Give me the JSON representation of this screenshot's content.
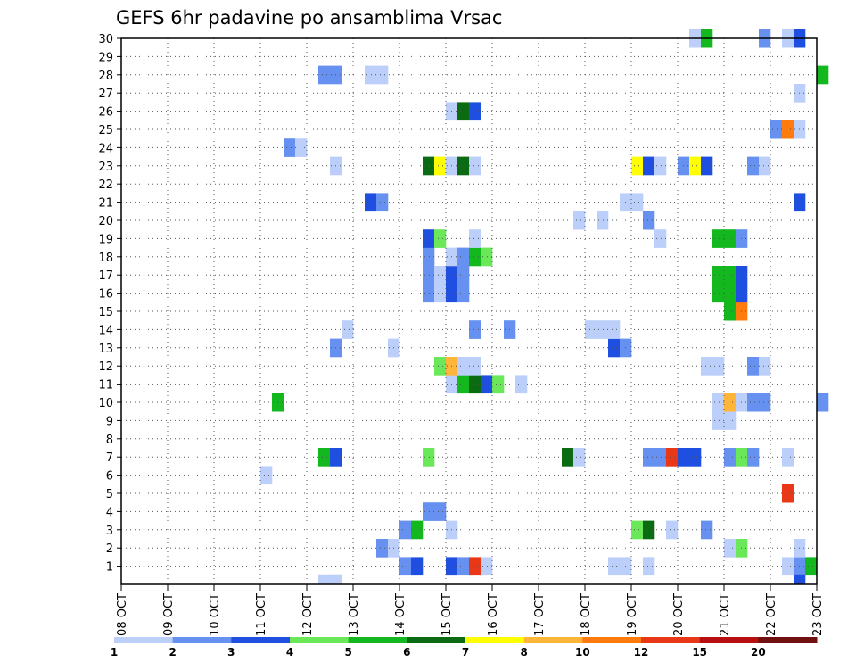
{
  "chart_data": {
    "type": "heatmap",
    "title": "GEFS 6hr padavine po ansamblima Vrsac",
    "xlabel": "",
    "ylabel": "",
    "x_ticks": [
      "08 OCT",
      "09 OCT",
      "10 OCT",
      "11 OCT",
      "12 OCT",
      "13 OCT",
      "14 OCT",
      "15 OCT",
      "16 OCT",
      "17 OCT",
      "18 OCT",
      "19 OCT",
      "20 OCT",
      "21 OCT",
      "22 OCT",
      "23 OCT"
    ],
    "y_ticks": [
      "1",
      "2",
      "3",
      "4",
      "5",
      "6",
      "7",
      "8",
      "9",
      "10",
      "11",
      "12",
      "13",
      "14",
      "15",
      "16",
      "17",
      "18",
      "19",
      "20",
      "21",
      "22",
      "23",
      "24",
      "25",
      "26",
      "27",
      "28",
      "29",
      "30"
    ],
    "xlim_days": [
      0,
      15
    ],
    "ylim": [
      0,
      30
    ],
    "grid": true,
    "legend": {
      "placement": "bottom",
      "labels": [
        "1",
        "2",
        "3",
        "4",
        "5",
        "6",
        "7",
        "8",
        "10",
        "12",
        "15",
        "20"
      ],
      "colors": [
        "#bccffa",
        "#6791f0",
        "#1f4fe0",
        "#6be85a",
        "#13b81f",
        "#0b6b13",
        "#ffff00",
        "#ffb43a",
        "#ff7b0d",
        "#e83818",
        "#b81010",
        "#701010"
      ]
    },
    "cell_hours": 6,
    "cells_note": "each cell = [member, start_hour_offset_from_08_OCT_00Z, class_index]",
    "cells": [
      [
        1,
        144,
        1
      ],
      [
        1,
        150,
        2
      ],
      [
        1,
        168,
        2
      ],
      [
        1,
        174,
        1
      ],
      [
        1,
        180,
        9
      ],
      [
        1,
        186,
        0
      ],
      [
        1,
        252,
        0
      ],
      [
        1,
        258,
        0
      ],
      [
        1,
        270,
        0
      ],
      [
        1,
        342,
        0
      ],
      [
        1,
        348,
        1
      ],
      [
        1,
        354,
        4
      ],
      [
        2,
        132,
        1
      ],
      [
        2,
        138,
        0
      ],
      [
        2,
        312,
        0
      ],
      [
        2,
        318,
        3
      ],
      [
        2,
        348,
        0
      ],
      [
        3,
        144,
        1
      ],
      [
        3,
        150,
        4
      ],
      [
        3,
        168,
        0
      ],
      [
        3,
        264,
        3
      ],
      [
        3,
        270,
        5
      ],
      [
        3,
        282,
        0
      ],
      [
        3,
        300,
        1
      ],
      [
        4,
        156,
        1
      ],
      [
        4,
        162,
        1
      ],
      [
        5,
        342,
        9
      ],
      [
        6,
        72,
        0
      ],
      [
        7,
        102,
        4
      ],
      [
        7,
        108,
        2
      ],
      [
        7,
        156,
        3
      ],
      [
        7,
        228,
        5
      ],
      [
        7,
        234,
        0
      ],
      [
        7,
        270,
        1
      ],
      [
        7,
        276,
        1
      ],
      [
        7,
        282,
        9
      ],
      [
        7,
        288,
        2
      ],
      [
        7,
        294,
        2
      ],
      [
        7,
        312,
        1
      ],
      [
        7,
        318,
        3
      ],
      [
        7,
        324,
        1
      ],
      [
        7,
        342,
        0
      ],
      [
        9,
        306,
        0
      ],
      [
        9,
        312,
        0
      ],
      [
        10,
        78,
        4
      ],
      [
        10,
        306,
        0
      ],
      [
        10,
        312,
        7
      ],
      [
        10,
        318,
        0
      ],
      [
        10,
        324,
        1
      ],
      [
        10,
        330,
        1
      ],
      [
        10,
        360,
        1
      ],
      [
        11,
        168,
        0
      ],
      [
        11,
        174,
        4
      ],
      [
        11,
        180,
        5
      ],
      [
        11,
        186,
        2
      ],
      [
        11,
        192,
        3
      ],
      [
        11,
        204,
        0
      ],
      [
        12,
        162,
        3
      ],
      [
        12,
        168,
        7
      ],
      [
        12,
        174,
        0
      ],
      [
        12,
        180,
        0
      ],
      [
        12,
        300,
        0
      ],
      [
        12,
        306,
        0
      ],
      [
        12,
        324,
        1
      ],
      [
        12,
        330,
        0
      ],
      [
        13,
        108,
        1
      ],
      [
        13,
        138,
        0
      ],
      [
        13,
        252,
        2
      ],
      [
        13,
        258,
        1
      ],
      [
        14,
        114,
        0
      ],
      [
        14,
        180,
        1
      ],
      [
        14,
        198,
        1
      ],
      [
        14,
        240,
        0
      ],
      [
        14,
        246,
        0
      ],
      [
        14,
        252,
        0
      ],
      [
        15,
        312,
        4
      ],
      [
        15,
        318,
        8
      ],
      [
        16,
        156,
        1
      ],
      [
        16,
        162,
        0
      ],
      [
        16,
        168,
        2
      ],
      [
        16,
        174,
        1
      ],
      [
        16,
        306,
        4
      ],
      [
        16,
        312,
        4
      ],
      [
        16,
        318,
        2
      ],
      [
        17,
        156,
        1
      ],
      [
        17,
        162,
        0
      ],
      [
        17,
        168,
        2
      ],
      [
        17,
        174,
        1
      ],
      [
        17,
        306,
        4
      ],
      [
        17,
        312,
        4
      ],
      [
        17,
        318,
        2
      ],
      [
        18,
        156,
        1
      ],
      [
        18,
        168,
        0
      ],
      [
        18,
        174,
        1
      ],
      [
        18,
        180,
        4
      ],
      [
        18,
        186,
        3
      ],
      [
        19,
        156,
        2
      ],
      [
        19,
        162,
        3
      ],
      [
        19,
        180,
        0
      ],
      [
        19,
        276,
        0
      ],
      [
        19,
        306,
        4
      ],
      [
        19,
        312,
        4
      ],
      [
        19,
        318,
        1
      ],
      [
        20,
        234,
        0
      ],
      [
        20,
        246,
        0
      ],
      [
        20,
        270,
        1
      ],
      [
        21,
        126,
        2
      ],
      [
        21,
        132,
        1
      ],
      [
        21,
        258,
        0
      ],
      [
        21,
        264,
        0
      ],
      [
        21,
        348,
        2
      ],
      [
        23,
        108,
        0
      ],
      [
        23,
        156,
        5
      ],
      [
        23,
        162,
        6
      ],
      [
        23,
        168,
        0
      ],
      [
        23,
        174,
        5
      ],
      [
        23,
        180,
        0
      ],
      [
        23,
        264,
        6
      ],
      [
        23,
        270,
        2
      ],
      [
        23,
        276,
        0
      ],
      [
        23,
        288,
        1
      ],
      [
        23,
        294,
        6
      ],
      [
        23,
        300,
        2
      ],
      [
        23,
        324,
        1
      ],
      [
        23,
        330,
        0
      ],
      [
        24,
        84,
        1
      ],
      [
        24,
        90,
        0
      ],
      [
        25,
        336,
        1
      ],
      [
        25,
        342,
        8
      ],
      [
        25,
        348,
        0
      ],
      [
        26,
        168,
        0
      ],
      [
        26,
        174,
        5
      ],
      [
        26,
        180,
        2
      ],
      [
        27,
        348,
        0
      ],
      [
        28,
        102,
        1
      ],
      [
        28,
        108,
        1
      ],
      [
        28,
        126,
        0
      ],
      [
        28,
        132,
        0
      ],
      [
        28,
        360,
        4
      ],
      [
        30,
        294,
        0
      ],
      [
        30,
        300,
        4
      ],
      [
        30,
        330,
        1
      ],
      [
        30,
        342,
        0
      ],
      [
        30,
        348,
        2
      ]
    ],
    "extra_cells_note": "row 0 (below member 1)",
    "extra_cells": [
      [
        0,
        102,
        0
      ],
      [
        0,
        108,
        0
      ],
      [
        0,
        348,
        2
      ]
    ]
  }
}
